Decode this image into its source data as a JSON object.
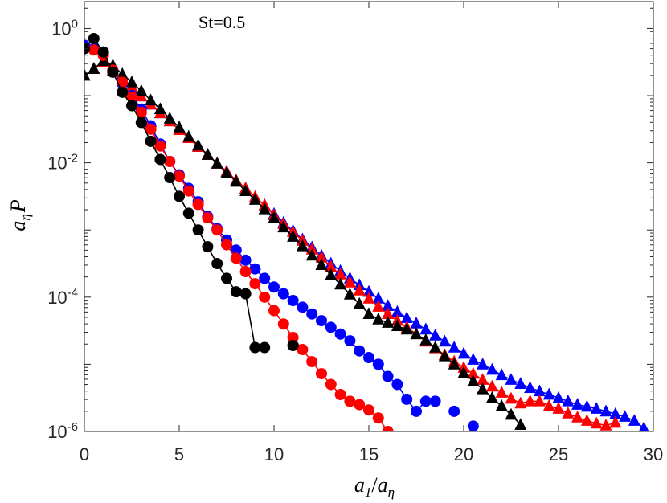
{
  "chart_data": {
    "type": "line",
    "annotation": "St=0.5",
    "xlabel": {
      "main": "a",
      "sub1": "1",
      "slash": "/",
      "main2": "a",
      "sub2": "η"
    },
    "ylabel": {
      "main": "a",
      "sub": "η",
      "tail": "P"
    },
    "xscale": "linear",
    "yscale": "log",
    "xlim": [
      0,
      30
    ],
    "ylim_log10": [
      -6,
      0.4
    ],
    "grid": false,
    "x_ticks": [
      "0",
      "5",
      "10",
      "15",
      "20",
      "25",
      "30"
    ],
    "y_ticks": [
      {
        "base": "10",
        "exp": "0",
        "log": 0
      },
      {
        "base": "10",
        "exp": "-2",
        "log": -2
      },
      {
        "base": "10",
        "exp": "-4",
        "log": -4
      },
      {
        "base": "10",
        "exp": "-6",
        "log": -6
      }
    ],
    "series": [
      {
        "name": "blue-triangles",
        "color": "#0000ff",
        "marker": "triangle",
        "x": [
          0,
          0.5,
          1,
          1.5,
          2,
          2.5,
          3,
          3.5,
          4,
          4.5,
          5,
          5.5,
          6,
          6.5,
          7,
          7.5,
          8,
          8.5,
          9,
          9.5,
          10,
          10.5,
          11,
          11.5,
          12,
          12.5,
          13,
          13.5,
          14,
          14.5,
          15,
          15.5,
          16,
          16.5,
          17,
          17.5,
          18,
          18.5,
          19,
          19.5,
          20,
          20.5,
          21,
          21.5,
          22,
          22.5,
          23,
          23.5,
          24,
          24.5,
          25,
          25.5,
          26,
          26.5,
          27,
          27.5,
          28,
          28.5,
          29,
          29.5
        ],
        "y_log10": [
          -0.7,
          -0.6,
          -0.5,
          -0.62,
          -0.75,
          -0.87,
          -1.01,
          -1.13,
          -1.26,
          -1.38,
          -1.51,
          -1.63,
          -1.76,
          -1.88,
          -2.01,
          -2.13,
          -2.26,
          -2.38,
          -2.51,
          -2.63,
          -2.76,
          -2.89,
          -3.01,
          -3.14,
          -3.26,
          -3.38,
          -3.5,
          -3.61,
          -3.72,
          -3.82,
          -3.92,
          -4.02,
          -4.13,
          -4.22,
          -4.31,
          -4.39,
          -4.48,
          -4.57,
          -4.66,
          -4.75,
          -4.84,
          -4.93,
          -5.0,
          -5.08,
          -5.16,
          -5.23,
          -5.29,
          -5.35,
          -5.4,
          -5.45,
          -5.5,
          -5.55,
          -5.6,
          -5.63,
          -5.66,
          -5.7,
          -5.74,
          -5.78,
          -5.84,
          -5.95
        ]
      },
      {
        "name": "red-triangles",
        "color": "#ff0000",
        "marker": "triangle",
        "x": [
          0,
          0.5,
          1,
          1.5,
          2,
          2.5,
          3,
          3.5,
          4,
          4.5,
          5,
          5.5,
          6,
          6.5,
          7,
          7.5,
          8,
          8.5,
          9,
          9.5,
          10,
          10.5,
          11,
          11.5,
          12,
          12.5,
          13,
          13.5,
          14,
          14.5,
          15,
          15.5,
          16,
          16.5,
          17,
          17.5,
          18,
          18.5,
          19,
          19.5,
          20,
          20.5,
          21,
          21.5,
          22,
          22.5,
          23,
          23.5,
          24,
          24.5,
          25,
          25.5,
          26,
          26.5,
          27,
          27.5,
          28
        ],
        "y_log10": [
          -0.7,
          -0.6,
          -0.5,
          -0.62,
          -0.75,
          -0.87,
          -1.01,
          -1.13,
          -1.26,
          -1.38,
          -1.51,
          -1.63,
          -1.76,
          -1.88,
          -2.01,
          -2.13,
          -2.26,
          -2.38,
          -2.51,
          -2.63,
          -2.78,
          -2.91,
          -3.03,
          -3.16,
          -3.29,
          -3.41,
          -3.55,
          -3.66,
          -3.78,
          -3.9,
          -4.02,
          -4.14,
          -4.25,
          -4.35,
          -4.45,
          -4.55,
          -4.66,
          -4.76,
          -4.86,
          -4.96,
          -5.05,
          -5.14,
          -5.23,
          -5.33,
          -5.42,
          -5.51,
          -5.58,
          -5.55,
          -5.55,
          -5.62,
          -5.66,
          -5.73,
          -5.79,
          -5.84,
          -5.88,
          -5.91,
          -5.87
        ]
      },
      {
        "name": "black-triangles",
        "color": "#000000",
        "marker": "triangle",
        "x": [
          0,
          0.5,
          1,
          1.5,
          2,
          2.5,
          3,
          3.5,
          4,
          4.5,
          5,
          5.5,
          6,
          6.5,
          7,
          7.5,
          8,
          8.5,
          9,
          9.5,
          10,
          10.5,
          11,
          11.5,
          12,
          12.5,
          13,
          13.5,
          14,
          14.5,
          15,
          15.5,
          16,
          16.5,
          17,
          17.5,
          18,
          18.5,
          19,
          19.5,
          20,
          20.5,
          21,
          21.5,
          22,
          22.5,
          23
        ],
        "y_log10": [
          -0.7,
          -0.6,
          -0.48,
          -0.55,
          -0.68,
          -0.8,
          -0.93,
          -1.07,
          -1.2,
          -1.34,
          -1.47,
          -1.61,
          -1.74,
          -1.88,
          -2.01,
          -2.15,
          -2.28,
          -2.42,
          -2.55,
          -2.69,
          -2.82,
          -2.96,
          -3.1,
          -3.24,
          -3.38,
          -3.52,
          -3.67,
          -3.81,
          -3.96,
          -4.1,
          -4.25,
          -4.33,
          -4.38,
          -4.43,
          -4.48,
          -4.55,
          -4.64,
          -4.75,
          -4.88,
          -5.0,
          -5.13,
          -5.25,
          -5.37,
          -5.5,
          -5.62,
          -5.75,
          -5.9
        ]
      },
      {
        "name": "blue-circles",
        "color": "#0000ff",
        "marker": "circle",
        "x": [
          0,
          0.5,
          1,
          1.5,
          2,
          2.5,
          3,
          3.5,
          4,
          4.5,
          5,
          5.5,
          6,
          6.5,
          7,
          7.5,
          8,
          8.5,
          9,
          9.5,
          10,
          10.5,
          11,
          11.5,
          12,
          12.5,
          13,
          13.5,
          14,
          14.5,
          15,
          15.5,
          16,
          16.5,
          17,
          17.5,
          18,
          18.5,
          19.5,
          20.5
        ],
        "y_log10": [
          -0.25,
          -0.3,
          -0.35,
          -0.65,
          -0.82,
          -1.0,
          -1.2,
          -1.45,
          -1.72,
          -1.98,
          -2.18,
          -2.38,
          -2.58,
          -2.8,
          -2.98,
          -3.15,
          -3.3,
          -3.45,
          -3.58,
          -3.72,
          -3.85,
          -3.95,
          -4.05,
          -4.15,
          -4.25,
          -4.35,
          -4.45,
          -4.55,
          -4.65,
          -4.8,
          -4.9,
          -5.0,
          -5.18,
          -5.3,
          -5.52,
          -5.7,
          -5.55,
          -5.55,
          -5.7,
          -5.92
        ],
        "segments": [
          [
            0,
            37
          ]
        ]
      },
      {
        "name": "red-circles",
        "color": "#ff0000",
        "marker": "circle",
        "x": [
          0,
          0.5,
          1,
          1.5,
          2,
          2.5,
          3,
          3.5,
          4,
          4.5,
          5,
          5.5,
          6,
          6.5,
          7,
          7.5,
          8,
          8.5,
          9,
          9.5,
          10,
          10.5,
          11,
          11.5,
          12,
          12.5,
          13,
          13.5,
          14,
          14.5,
          15,
          15.5,
          16
        ],
        "y_log10": [
          -0.3,
          -0.32,
          -0.4,
          -0.62,
          -0.8,
          -1.02,
          -1.25,
          -1.5,
          -1.75,
          -1.98,
          -2.2,
          -2.42,
          -2.62,
          -2.82,
          -3.0,
          -3.22,
          -3.42,
          -3.62,
          -3.8,
          -4.0,
          -4.2,
          -4.4,
          -4.6,
          -4.78,
          -4.96,
          -5.14,
          -5.3,
          -5.45,
          -5.55,
          -5.6,
          -5.68,
          -5.8,
          -6.0
        ],
        "segments": [
          [
            0,
            32
          ]
        ]
      },
      {
        "name": "black-circles",
        "color": "#000000",
        "marker": "circle",
        "x": [
          0,
          0.5,
          1,
          1.5,
          2,
          2.5,
          3,
          3.5,
          4,
          4.5,
          5,
          5.5,
          6,
          6.5,
          7,
          7.5,
          8,
          8.5,
          9,
          9.5,
          11
        ],
        "y_log10": [
          -0.3,
          -0.15,
          -0.35,
          -0.65,
          -0.95,
          -1.15,
          -1.4,
          -1.68,
          -1.95,
          -2.22,
          -2.5,
          -2.75,
          -3.0,
          -3.25,
          -3.5,
          -3.72,
          -3.92,
          -3.95,
          -4.75,
          -4.75,
          -4.72
        ],
        "segments": [
          [
            0,
            19
          ]
        ]
      }
    ]
  }
}
